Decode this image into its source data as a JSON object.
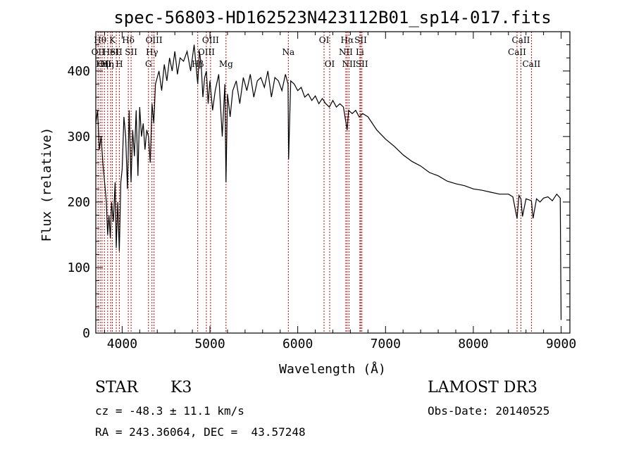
{
  "chart_data": {
    "type": "line",
    "title": "spec-56803-HD162523N423112B01_sp14-017.fits",
    "xlabel": "Wavelength (Å)",
    "ylabel": "Flux (relative)",
    "xlim": [
      3700,
      9100
    ],
    "ylim": [
      0,
      460
    ],
    "xticks": [
      4000,
      5000,
      6000,
      7000,
      8000,
      9000
    ],
    "yticks": [
      0,
      100,
      200,
      300,
      400
    ],
    "grid": false,
    "series": [
      {
        "x": [
          3700,
          3720,
          3740,
          3760,
          3780,
          3800,
          3820,
          3835,
          3850,
          3865,
          3880,
          3900,
          3920,
          3933,
          3950,
          3968,
          3985,
          4000,
          4020,
          4040,
          4060,
          4080,
          4101,
          4120,
          4140,
          4160,
          4180,
          4200,
          4220,
          4240,
          4260,
          4280,
          4300,
          4320,
          4340,
          4360,
          4380,
          4400,
          4420,
          4450,
          4480,
          4510,
          4540,
          4570,
          4600,
          4630,
          4660,
          4700,
          4740,
          4780,
          4820,
          4861,
          4880,
          4900,
          4920,
          4940,
          4960,
          4980,
          5000,
          5030,
          5060,
          5100,
          5140,
          5170,
          5183,
          5200,
          5230,
          5260,
          5300,
          5340,
          5380,
          5420,
          5460,
          5500,
          5540,
          5580,
          5620,
          5660,
          5700,
          5740,
          5780,
          5820,
          5860,
          5890,
          5896,
          5920,
          5960,
          6000,
          6040,
          6080,
          6120,
          6160,
          6200,
          6240,
          6280,
          6320,
          6360,
          6400,
          6440,
          6480,
          6520,
          6563,
          6580,
          6620,
          6660,
          6700,
          6740,
          6800,
          6900,
          7000,
          7100,
          7200,
          7300,
          7400,
          7500,
          7600,
          7700,
          7800,
          7900,
          8000,
          8100,
          8200,
          8300,
          8400,
          8450,
          8498,
          8520,
          8542,
          8560,
          8600,
          8662,
          8680,
          8720,
          8760,
          8800,
          8850,
          8900,
          8950,
          8990,
          9000
        ],
        "y": [
          320,
          340,
          280,
          300,
          260,
          230,
          200,
          150,
          180,
          145,
          200,
          170,
          230,
          130,
          200,
          125,
          230,
          250,
          330,
          300,
          220,
          340,
          230,
          310,
          270,
          340,
          240,
          345,
          300,
          320,
          280,
          310,
          300,
          260,
          350,
          320,
          380,
          390,
          400,
          370,
          410,
          385,
          420,
          400,
          430,
          395,
          420,
          415,
          430,
          400,
          440,
          380,
          430,
          410,
          360,
          390,
          400,
          350,
          385,
          340,
          370,
          395,
          300,
          380,
          230,
          365,
          330,
          370,
          385,
          350,
          390,
          370,
          395,
          360,
          385,
          390,
          375,
          400,
          360,
          390,
          385,
          370,
          395,
          380,
          265,
          385,
          380,
          370,
          375,
          360,
          365,
          355,
          362,
          350,
          358,
          350,
          345,
          355,
          345,
          350,
          345,
          310,
          340,
          335,
          340,
          330,
          335,
          330,
          310,
          296,
          285,
          272,
          262,
          255,
          245,
          240,
          232,
          228,
          225,
          220,
          218,
          215,
          212,
          212,
          208,
          175,
          210,
          205,
          178,
          205,
          202,
          175,
          205,
          200,
          206,
          208,
          202,
          212,
          206,
          20
        ],
        "color": "#000000"
      }
    ],
    "line_markers": [
      {
        "wavelength": 3726,
        "label": "OII",
        "row": 1
      },
      {
        "wavelength": 3750,
        "label": "Hθ",
        "row": 0
      },
      {
        "wavelength": 3771,
        "label": "Hη",
        "row": 2
      },
      {
        "wavelength": 3798,
        "label": "OII",
        "row": 2
      },
      {
        "wavelength": 3835,
        "label": "Hη",
        "row": 2
      },
      {
        "wavelength": 3869,
        "label": "HeI",
        "row": 1
      },
      {
        "wavelength": 3889,
        "label": "K",
        "row": 0
      },
      {
        "wavelength": 3933,
        "label": "SII",
        "row": 1
      },
      {
        "wavelength": 3968,
        "label": "H",
        "row": 2
      },
      {
        "wavelength": 4070,
        "label": "Hδ",
        "row": 0
      },
      {
        "wavelength": 4102,
        "label": "SII",
        "row": 1
      },
      {
        "wavelength": 4300,
        "label": "G",
        "row": 2
      },
      {
        "wavelength": 4340,
        "label": "Hγ",
        "row": 1
      },
      {
        "wavelength": 4363,
        "label": "OIII",
        "row": 0
      },
      {
        "wavelength": 4861,
        "label": "Hβ",
        "row": 2
      },
      {
        "wavelength": 4959,
        "label": "OIII",
        "row": 1
      },
      {
        "wavelength": 5007,
        "label": "OIII",
        "row": 0
      },
      {
        "wavelength": 5183,
        "label": "Mg",
        "row": 2
      },
      {
        "wavelength": 5893,
        "label": "Na",
        "row": 1
      },
      {
        "wavelength": 6300,
        "label": "OI",
        "row": 0
      },
      {
        "wavelength": 6364,
        "label": "OI",
        "row": 2
      },
      {
        "wavelength": 6548,
        "label": "NII",
        "row": 1
      },
      {
        "wavelength": 6563,
        "label": "Hα",
        "row": 0
      },
      {
        "wavelength": 6584,
        "label": "NII",
        "row": 2
      },
      {
        "wavelength": 6708,
        "label": "Li",
        "row": 1
      },
      {
        "wavelength": 6717,
        "label": "SII",
        "row": 0
      },
      {
        "wavelength": 6731,
        "label": "SII",
        "row": 2
      },
      {
        "wavelength": 8498,
        "label": "CaII",
        "row": 1
      },
      {
        "wavelength": 8542,
        "label": "CaII",
        "row": 0
      },
      {
        "wavelength": 8662,
        "label": "CaII",
        "row": 2
      }
    ],
    "marker_color": "#cc0000"
  },
  "info": {
    "object_class": "STAR",
    "subclass": "K3",
    "survey": "LAMOST DR3",
    "redshift": "cz = -48.3 ± 11.1 km/s",
    "obs_date": "Obs-Date: 20140525",
    "coords": "RA = 243.36064, DEC =  43.57248"
  }
}
